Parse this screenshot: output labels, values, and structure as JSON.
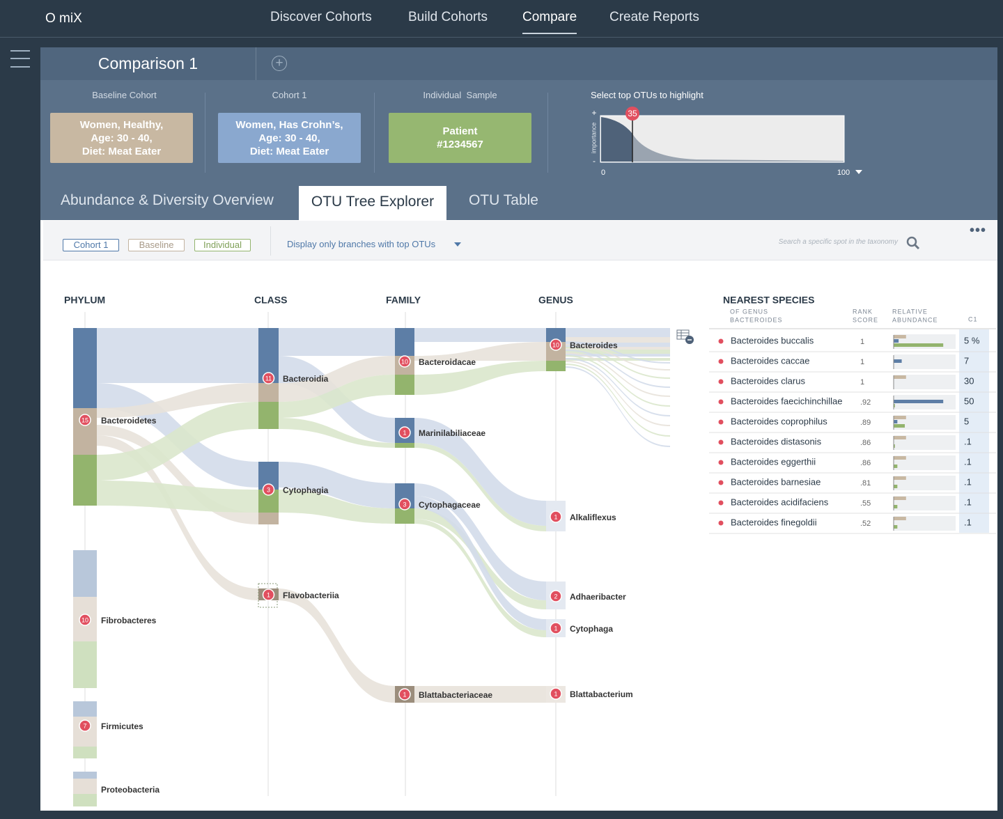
{
  "app": {
    "brand": "O miX",
    "nav": [
      "Discover Cohorts",
      "Build Cohorts",
      "Compare",
      "Create Reports"
    ],
    "active_nav": 2
  },
  "comparison": {
    "tab": "Comparison 1"
  },
  "cohorts": [
    {
      "label": "Baseline Cohort",
      "lines": [
        "Women, Healthy,",
        "Age: 30 - 40,",
        "Diet: Meat Eater"
      ]
    },
    {
      "label": "Cohort 1",
      "lines": [
        "Women, Has Crohn’s,",
        "Age: 30 - 40,",
        "Diet: Meat Eater"
      ]
    },
    {
      "label": "Individual  Sample",
      "lines": [
        "Patient",
        "#1234567"
      ]
    }
  ],
  "otu_selector": {
    "title": "Select top OTUs to highlight",
    "axis_label": "importance",
    "axis_plus": "+",
    "axis_minus": "-",
    "marker": 35,
    "range_min": 0,
    "range_max": 100
  },
  "tabs": [
    "Abundance & Diversity Overview",
    "OTU Tree Explorer",
    "OTU Table"
  ],
  "active_tab": 1,
  "filters": {
    "chips": [
      "Cohort 1",
      "Baseline",
      "Individual"
    ],
    "dropdown": "Display only branches with top OTUs",
    "search_placeholder": "Search a specific spot in the taxonomy"
  },
  "tree": {
    "columns": [
      "PHYLUM",
      "CLASS",
      "FAMILY",
      "GENUS"
    ],
    "phylum": [
      {
        "label": "Bacteroidetes",
        "count": 15
      },
      {
        "label": "Fibrobacteres",
        "count": 10
      },
      {
        "label": "Firmicutes",
        "count": 7
      },
      {
        "label": "Proteobacteria"
      }
    ],
    "class": [
      {
        "label": "Bacteroidia",
        "count": 11
      },
      {
        "label": "Cytophagia",
        "count": 3
      },
      {
        "label": "Flavobacteriia",
        "count": 1
      }
    ],
    "family": [
      {
        "label": "Bacteroidacae",
        "count": 10
      },
      {
        "label": "Marinilabiliaceae",
        "count": 1
      },
      {
        "label": "Cytophagaceae",
        "count": 3
      },
      {
        "label": "Blattabacteriaceae",
        "count": 1
      }
    ],
    "genus": [
      {
        "label": "Bacteroides",
        "count": 10
      },
      {
        "label": "Alkaliflexus",
        "count": 1
      },
      {
        "label": "Adhaeribacter",
        "count": 2
      },
      {
        "label": "Cytophaga",
        "count": 1
      },
      {
        "label": "Blattabacterium",
        "count": 1
      }
    ]
  },
  "species": {
    "title": "NEAREST SPECIES",
    "subtitle": [
      "OF GENUS",
      "BACTEROIDES"
    ],
    "headers": {
      "rank": [
        "RANK",
        "SCORE"
      ],
      "abundance": [
        "RELATIVE",
        "ABUNDANCE"
      ],
      "c1": "C1"
    },
    "rows": [
      {
        "name": "Bacteroides buccalis",
        "score": "1",
        "c1": "5 %",
        "abundance": [
          20,
          8,
          80
        ]
      },
      {
        "name": "Bacteroides caccae",
        "score": "1",
        "c1": "7",
        "abundance": [
          0,
          13,
          0
        ]
      },
      {
        "name": "Bacteroides clarus",
        "score": "1",
        "c1": "30",
        "abundance": [
          20,
          0,
          0
        ]
      },
      {
        "name": "Bacteroides faecichinchillae",
        "score": ".92",
        "c1": "50",
        "abundance": [
          0,
          80,
          2
        ]
      },
      {
        "name": "Bacteroides coprophilus",
        "score": ".89",
        "c1": "5",
        "abundance": [
          20,
          6,
          18
        ]
      },
      {
        "name": "Bacteroides distasonis",
        "score": ".86",
        "c1": ".1",
        "abundance": [
          20,
          0,
          2
        ]
      },
      {
        "name": "Bacteroides eggerthii",
        "score": ".86",
        "c1": ".1",
        "abundance": [
          20,
          0,
          6
        ]
      },
      {
        "name": "Bacteroides barnesiae",
        "score": ".81",
        "c1": ".1",
        "abundance": [
          20,
          0,
          6
        ]
      },
      {
        "name": "Bacteroides acidifaciens",
        "score": ".55",
        "c1": ".1",
        "abundance": [
          20,
          0,
          6
        ]
      },
      {
        "name": "Bacteroides finegoldii",
        "score": ".52",
        "c1": ".1",
        "abundance": [
          20,
          0,
          6
        ]
      }
    ]
  }
}
